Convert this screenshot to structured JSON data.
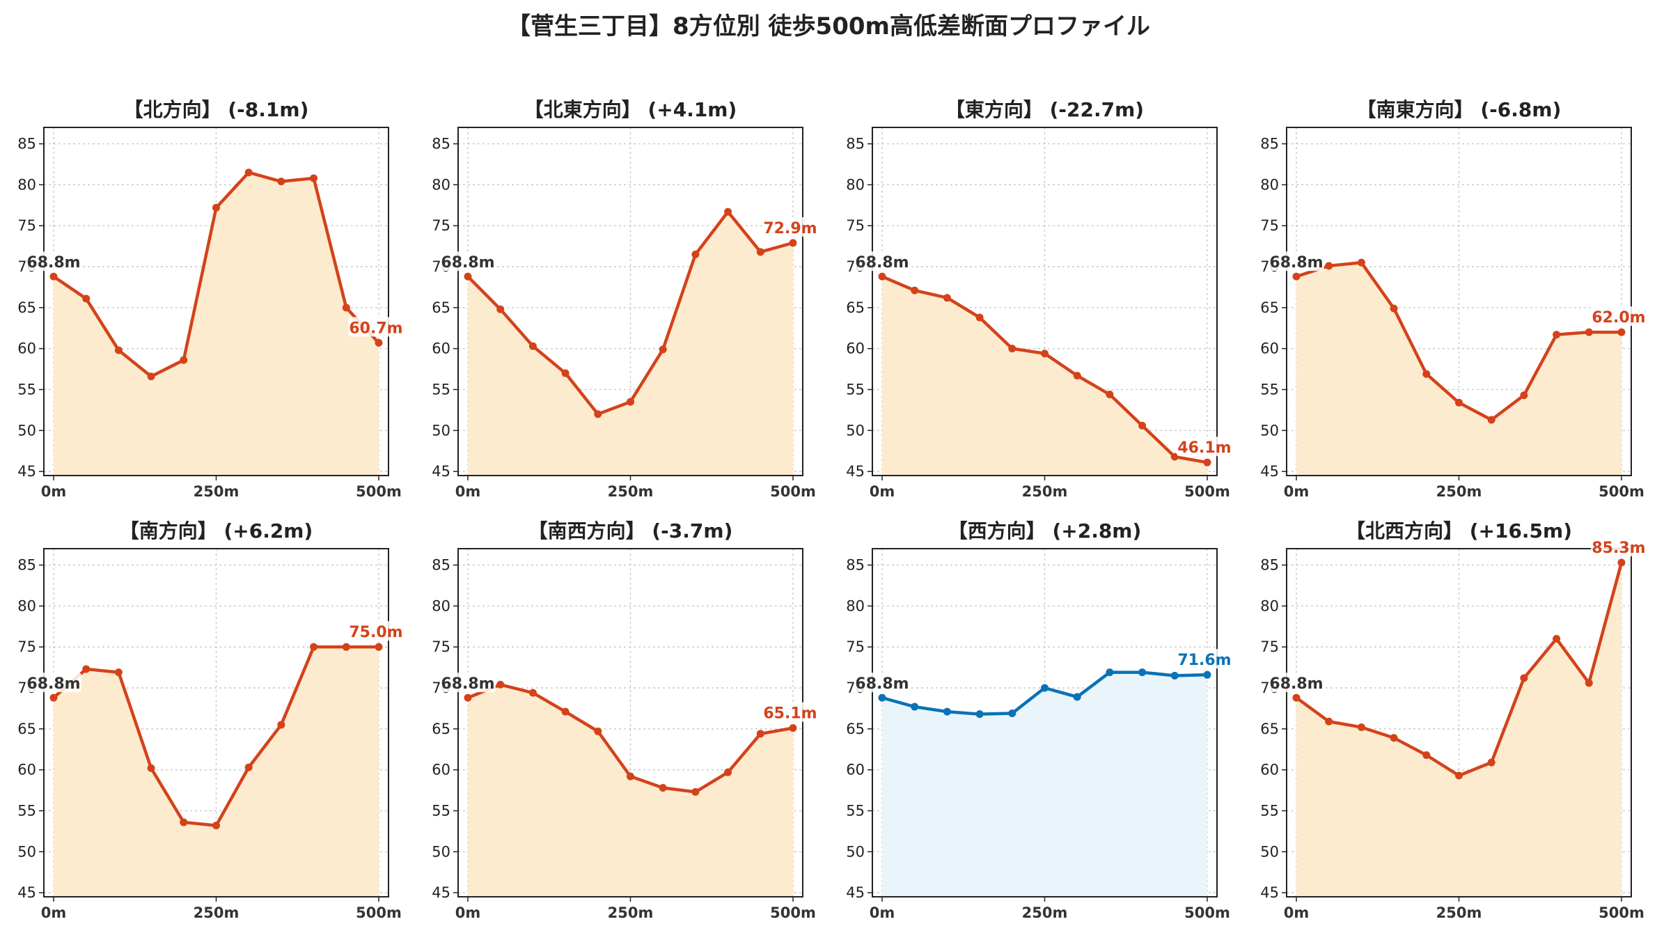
{
  "suptitle": "【菅生三丁目】8方位別 徒歩500m高低差断面プロファイル",
  "colors": {
    "default": "#d4421a",
    "default_fill": "#fdebcf",
    "highlight": "#0a72b5",
    "highlight_fill": "#e9f5fb",
    "start_label": "#333333"
  },
  "chart_data": [
    {
      "type": "area",
      "title": "【北方向】 (-8.1m)",
      "highlight": false,
      "start_label": "68.8m",
      "end_label": "60.7m",
      "x": [
        0,
        50,
        100,
        150,
        200,
        250,
        300,
        350,
        400,
        450,
        500
      ],
      "xticks": [
        0,
        250,
        500
      ],
      "xtick_labels": [
        "0m",
        "250m",
        "500m"
      ],
      "yticks": [
        45,
        50,
        55,
        60,
        65,
        70,
        75,
        80,
        85
      ],
      "ylim": [
        44.5,
        87
      ],
      "xlim": [
        -15,
        515
      ],
      "grid": true,
      "y": [
        68.8,
        66.1,
        59.8,
        56.6,
        58.6,
        77.2,
        81.5,
        80.4,
        80.8,
        65.0,
        60.7
      ]
    },
    {
      "type": "area",
      "title": "【北東方向】 (+4.1m)",
      "highlight": false,
      "start_label": "68.8m",
      "end_label": "72.9m",
      "x": [
        0,
        50,
        100,
        150,
        200,
        250,
        300,
        350,
        400,
        450,
        500
      ],
      "xticks": [
        0,
        250,
        500
      ],
      "xtick_labels": [
        "0m",
        "250m",
        "500m"
      ],
      "yticks": [
        45,
        50,
        55,
        60,
        65,
        70,
        75,
        80,
        85
      ],
      "ylim": [
        44.5,
        87
      ],
      "xlim": [
        -15,
        515
      ],
      "grid": true,
      "y": [
        68.8,
        64.8,
        60.3,
        57.0,
        52.0,
        53.5,
        59.9,
        71.5,
        76.7,
        71.8,
        72.9
      ]
    },
    {
      "type": "area",
      "title": "【東方向】 (-22.7m)",
      "highlight": false,
      "start_label": "68.8m",
      "end_label": "46.1m",
      "x": [
        0,
        50,
        100,
        150,
        200,
        250,
        300,
        350,
        400,
        450,
        500
      ],
      "xticks": [
        0,
        250,
        500
      ],
      "xtick_labels": [
        "0m",
        "250m",
        "500m"
      ],
      "yticks": [
        45,
        50,
        55,
        60,
        65,
        70,
        75,
        80,
        85
      ],
      "ylim": [
        44.5,
        87
      ],
      "xlim": [
        -15,
        515
      ],
      "grid": true,
      "y": [
        68.8,
        67.1,
        66.2,
        63.8,
        60.0,
        59.4,
        56.7,
        54.4,
        50.6,
        46.8,
        46.1
      ]
    },
    {
      "type": "area",
      "title": "【南東方向】 (-6.8m)",
      "highlight": false,
      "start_label": "68.8m",
      "end_label": "62.0m",
      "x": [
        0,
        50,
        100,
        150,
        200,
        250,
        300,
        350,
        400,
        450,
        500
      ],
      "xticks": [
        0,
        250,
        500
      ],
      "xtick_labels": [
        "0m",
        "250m",
        "500m"
      ],
      "yticks": [
        45,
        50,
        55,
        60,
        65,
        70,
        75,
        80,
        85
      ],
      "ylim": [
        44.5,
        87
      ],
      "xlim": [
        -15,
        515
      ],
      "grid": true,
      "y": [
        68.8,
        70.1,
        70.5,
        64.9,
        56.9,
        53.4,
        51.3,
        54.3,
        61.7,
        62.0,
        62.0
      ]
    },
    {
      "type": "area",
      "title": "【南方向】 (+6.2m)",
      "highlight": false,
      "start_label": "68.8m",
      "end_label": "75.0m",
      "x": [
        0,
        50,
        100,
        150,
        200,
        250,
        300,
        350,
        400,
        450,
        500
      ],
      "xticks": [
        0,
        250,
        500
      ],
      "xtick_labels": [
        "0m",
        "250m",
        "500m"
      ],
      "yticks": [
        45,
        50,
        55,
        60,
        65,
        70,
        75,
        80,
        85
      ],
      "ylim": [
        44.5,
        87
      ],
      "xlim": [
        -15,
        515
      ],
      "grid": true,
      "y": [
        68.8,
        72.3,
        71.9,
        60.2,
        53.6,
        53.2,
        60.3,
        65.5,
        75.0,
        75.0,
        75.0
      ]
    },
    {
      "type": "area",
      "title": "【南西方向】 (-3.7m)",
      "highlight": false,
      "start_label": "68.8m",
      "end_label": "65.1m",
      "x": [
        0,
        50,
        100,
        150,
        200,
        250,
        300,
        350,
        400,
        450,
        500
      ],
      "xticks": [
        0,
        250,
        500
      ],
      "xtick_labels": [
        "0m",
        "250m",
        "500m"
      ],
      "yticks": [
        45,
        50,
        55,
        60,
        65,
        70,
        75,
        80,
        85
      ],
      "ylim": [
        44.5,
        87
      ],
      "xlim": [
        -15,
        515
      ],
      "grid": true,
      "y": [
        68.8,
        70.4,
        69.4,
        67.1,
        64.7,
        59.2,
        57.8,
        57.3,
        59.7,
        64.4,
        65.1
      ]
    },
    {
      "type": "area",
      "title": "【西方向】 (+2.8m)",
      "highlight": true,
      "start_label": "68.8m",
      "end_label": "71.6m",
      "x": [
        0,
        50,
        100,
        150,
        200,
        250,
        300,
        350,
        400,
        450,
        500
      ],
      "xticks": [
        0,
        250,
        500
      ],
      "xtick_labels": [
        "0m",
        "250m",
        "500m"
      ],
      "yticks": [
        45,
        50,
        55,
        60,
        65,
        70,
        75,
        80,
        85
      ],
      "ylim": [
        44.5,
        87
      ],
      "xlim": [
        -15,
        515
      ],
      "grid": true,
      "y": [
        68.8,
        67.7,
        67.1,
        66.8,
        66.9,
        70.0,
        68.9,
        71.9,
        71.9,
        71.5,
        71.6
      ]
    },
    {
      "type": "area",
      "title": "【北西方向】 (+16.5m)",
      "highlight": false,
      "start_label": "68.8m",
      "end_label": "85.3m",
      "x": [
        0,
        50,
        100,
        150,
        200,
        250,
        300,
        350,
        400,
        450,
        500
      ],
      "xticks": [
        0,
        250,
        500
      ],
      "xtick_labels": [
        "0m",
        "250m",
        "500m"
      ],
      "yticks": [
        45,
        50,
        55,
        60,
        65,
        70,
        75,
        80,
        85
      ],
      "ylim": [
        44.5,
        87
      ],
      "xlim": [
        -15,
        515
      ],
      "grid": true,
      "y": [
        68.8,
        65.9,
        65.2,
        63.9,
        61.8,
        59.3,
        60.9,
        71.2,
        76.0,
        70.6,
        85.3
      ]
    }
  ]
}
